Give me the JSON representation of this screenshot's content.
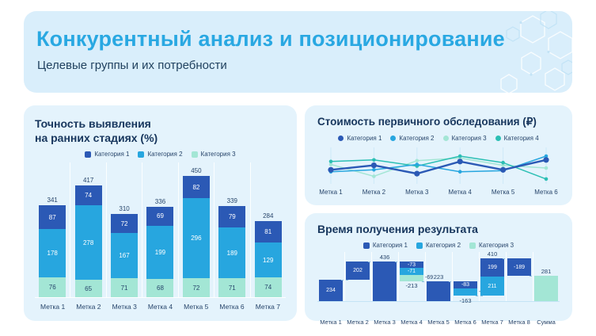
{
  "header": {
    "title": "Конкурентный анализ и позиционирование",
    "subtitle": "Целевые группы и их потребности"
  },
  "colors": {
    "accent": "#29A8E2",
    "navy": "#1B3C63",
    "header_bg": "#D9EEFB",
    "card_bg": "#E4F3FC",
    "cat1": "#2B59B5",
    "cat2": "#27A6DF",
    "cat3": "#A3E6D5",
    "cat4": "#2CBFB4"
  },
  "chart_data": [
    {
      "id": "accuracy",
      "type": "bar",
      "stacked": true,
      "title": "Точность выявления на ранних стадиях (%)",
      "title_lines": [
        "Точность выявления",
        "на ранних стадиях (%)"
      ],
      "legend_position": "top",
      "categories": [
        "Метка 1",
        "Метка 2",
        "Метка 3",
        "Метка 4",
        "Метка 5",
        "Метка 6",
        "Метка 7"
      ],
      "series": [
        {
          "name": "Категория 1",
          "color_key": "cat1",
          "values": [
            87,
            74,
            72,
            69,
            82,
            79,
            81
          ]
        },
        {
          "name": "Категория 2",
          "color_key": "cat2",
          "values": [
            178,
            278,
            167,
            199,
            296,
            189,
            129
          ]
        },
        {
          "name": "Категория 3",
          "color_key": "cat3",
          "values": [
            76,
            65,
            71,
            68,
            72,
            71,
            74
          ]
        }
      ],
      "totals": [
        341,
        417,
        310,
        336,
        450,
        339,
        284
      ],
      "ylim": [
        0,
        470
      ]
    },
    {
      "id": "cost",
      "type": "line",
      "title": "Стоимость первичного обследования (₽)",
      "legend_position": "top",
      "categories": [
        "Метка 1",
        "Метка 2",
        "Метка 3",
        "Метка 4",
        "Метка 5",
        "Метка 6"
      ],
      "series": [
        {
          "name": "Категория 1",
          "color_key": "cat1",
          "values": [
            49,
            66,
            35,
            80,
            49,
            86
          ]
        },
        {
          "name": "Категория 2",
          "color_key": "cat2",
          "values": [
            42,
            49,
            69,
            42,
            46,
            100
          ]
        },
        {
          "name": "Категория 3",
          "color_key": "cat3",
          "values": [
            69,
            25,
            83,
            93,
            66,
            56
          ]
        },
        {
          "name": "Категория 4",
          "color_key": "cat4",
          "values": [
            80,
            86,
            63,
            100,
            76,
            15
          ]
        }
      ],
      "ylim": [
        0,
        110
      ]
    },
    {
      "id": "time",
      "type": "waterfall",
      "title": "Время получения результата",
      "legend_position": "top",
      "legend": [
        {
          "name": "Категория 1",
          "color_key": "cat1"
        },
        {
          "name": "Категория 2",
          "color_key": "cat2"
        },
        {
          "name": "Категория 3",
          "color_key": "cat3"
        }
      ],
      "categories": [
        "Метка 1",
        "Метка 2",
        "Метка 3",
        "Метка 4",
        "Метка 5",
        "Метка 6",
        "Метка 7",
        "Метка 8",
        "Сумма"
      ],
      "ylim": [
        0,
        470
      ],
      "bars": [
        {
          "category": "Метка 1",
          "start": 0,
          "end": 234,
          "segments": [
            {
              "series": "Категория 1",
              "color_key": "cat1",
              "value": 234,
              "label": "234",
              "label_pos": "inside"
            }
          ]
        },
        {
          "category": "Метка 2",
          "start": 234,
          "end": 436,
          "segments": [
            {
              "series": "Категория 1",
              "color_key": "cat1",
              "value": 202,
              "label": "202",
              "label_pos": "inside"
            }
          ]
        },
        {
          "category": "Метка 3",
          "start": 0,
          "end": 436,
          "label_above": "436",
          "segments": [
            {
              "series": "Категория 1",
              "color_key": "cat1",
              "value": 436
            }
          ]
        },
        {
          "category": "Метка 4",
          "start": 436,
          "end": 223,
          "label_below": "-213",
          "segments": [
            {
              "series": "Категория 1",
              "color_key": "cat1",
              "value": -73,
              "label": "-73",
              "label_pos": "inside"
            },
            {
              "series": "Категория 2",
              "color_key": "cat2",
              "value": -71,
              "label": "-71",
              "label_pos": "inside"
            },
            {
              "series": "Категория 3",
              "color_key": "cat3",
              "value": -69,
              "label": "-69",
              "label_pos": "right"
            }
          ]
        },
        {
          "category": "Метка 5",
          "start": 0,
          "end": 223,
          "label_above": "223",
          "segments": [
            {
              "series": "Категория 1",
              "color_key": "cat1",
              "value": 223
            }
          ]
        },
        {
          "category": "Метка 6",
          "start": 223,
          "end": 60,
          "label_below": "-163",
          "segments": [
            {
              "series": "Категория 1",
              "color_key": "cat1",
              "value": -83,
              "label": "-83",
              "label_pos": "inside"
            },
            {
              "series": "Категория 2",
              "color_key": "cat2",
              "value": -80,
              "label": "-80",
              "label_pos": "right"
            }
          ]
        },
        {
          "category": "Метка 7",
          "start": 60,
          "end": 470,
          "label_above": "410",
          "segments": [
            {
              "series": "Категория 1",
              "color_key": "cat1",
              "value": 199,
              "label": "199",
              "label_pos": "inside"
            },
            {
              "series": "Категория 2",
              "color_key": "cat2",
              "value": 211,
              "label": "211",
              "label_pos": "inside"
            }
          ]
        },
        {
          "category": "Метка 8",
          "start": 470,
          "end": 281,
          "segments": [
            {
              "series": "Категория 1",
              "color_key": "cat1",
              "value": -189,
              "label": "-189",
              "label_pos": "inside"
            }
          ]
        },
        {
          "category": "Сумма",
          "start": 0,
          "end": 281,
          "label_above": "281",
          "segments": [
            {
              "series": "Категория 3",
              "color_key": "cat3",
              "value": 281
            }
          ]
        }
      ]
    }
  ]
}
